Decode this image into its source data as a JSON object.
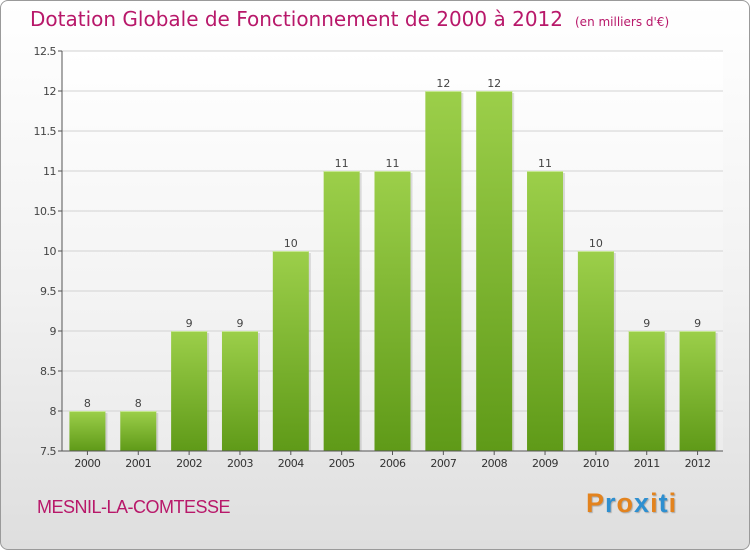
{
  "header": {
    "title": "Dotation Globale de Fonctionnement de 2000 à 2012",
    "unit": "(en milliers d'€)"
  },
  "footer": {
    "town": "MESNIL-LA-COMTESSE",
    "logo": "Proxiti"
  },
  "colors": {
    "title": "#b8186a",
    "bar_top": "#9ccf4a",
    "bar_bottom": "#5f9a18",
    "logo_letters": [
      "#e3831e",
      "#2e8fd0",
      "#e3831e",
      "#2e8fd0",
      "#e3831e",
      "#2e8fd0",
      "#e3831e"
    ]
  },
  "chart_data": {
    "type": "bar",
    "categories": [
      "2000",
      "2001",
      "2002",
      "2003",
      "2004",
      "2005",
      "2006",
      "2007",
      "2008",
      "2009",
      "2010",
      "2011",
      "2012"
    ],
    "values": [
      8,
      8,
      9,
      9,
      10,
      11,
      11,
      12,
      12,
      11,
      10,
      9,
      9
    ],
    "data_labels": [
      "8",
      "8",
      "9",
      "9",
      "10",
      "11",
      "11",
      "12",
      "12",
      "11",
      "10",
      "9",
      "9"
    ],
    "ylim": [
      7.5,
      12.5
    ],
    "yticks": [
      7.5,
      8,
      8.5,
      9,
      9.5,
      10,
      10.5,
      11,
      11.5,
      12,
      12.5
    ],
    "ytick_labels": [
      "7.5",
      "8",
      "8.5",
      "9",
      "9.5",
      "10",
      "10.5",
      "11",
      "11.5",
      "12",
      "12.5"
    ],
    "grid": true
  }
}
